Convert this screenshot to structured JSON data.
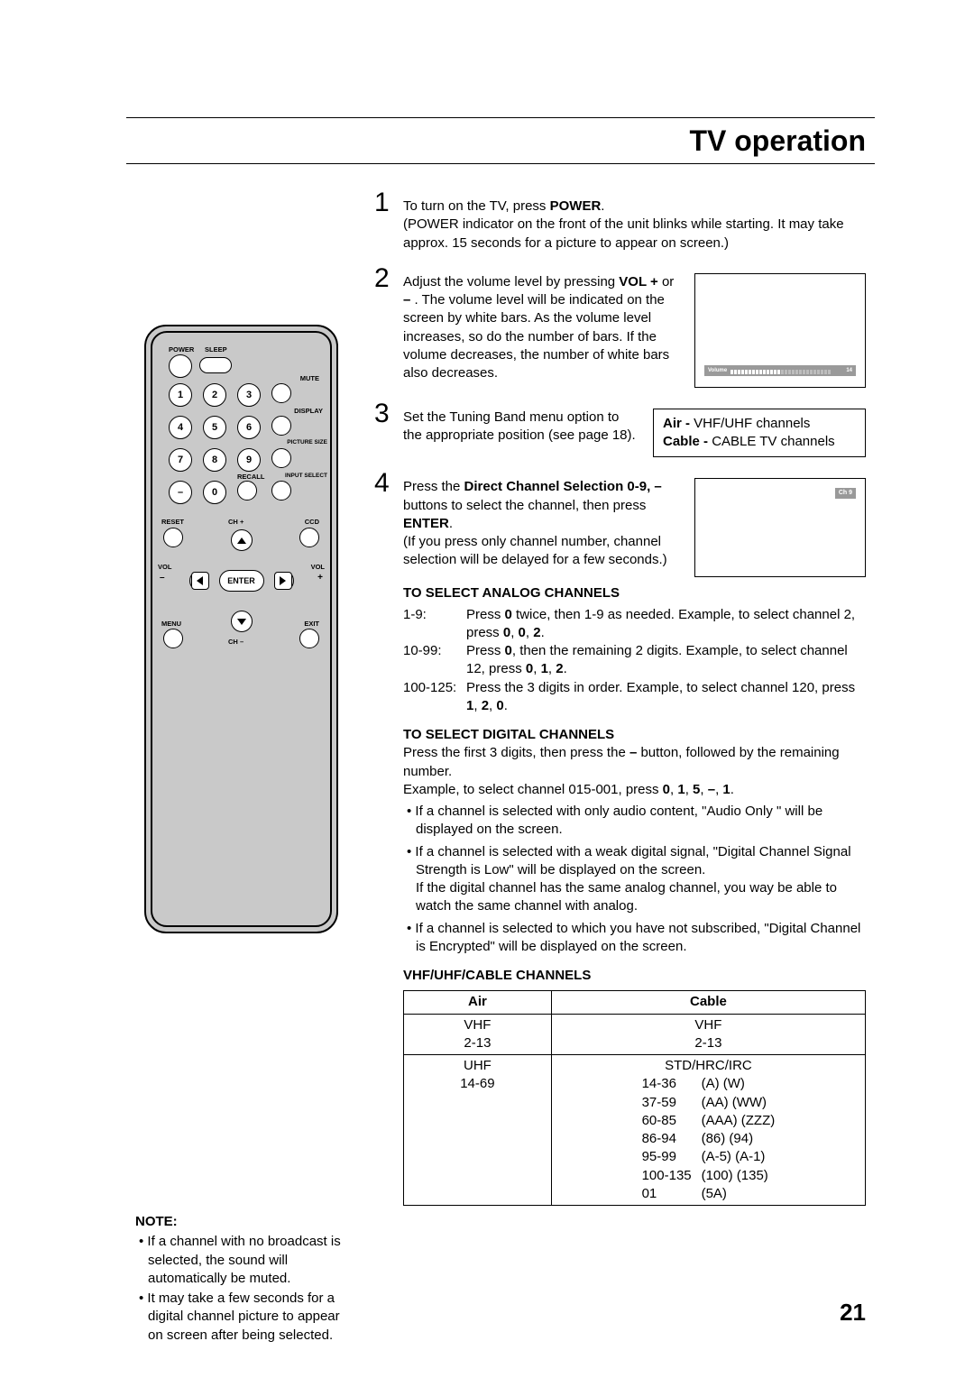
{
  "title": "TV operation",
  "page_number": "21",
  "steps": {
    "s1": {
      "num": "1",
      "a": "To turn on the TV, press ",
      "b": "POWER",
      "c": ".",
      "d": "(POWER indicator on the front of the unit blinks while starting. It may take approx. 15 seconds for a picture to appear on screen.)"
    },
    "s2": {
      "num": "2",
      "a": "Adjust the volume level by pressing ",
      "b": "VOL +",
      "c": " or ",
      "d": "–",
      "e": " . The volume level will be indicated on the screen by white bars. As the volume level increases, so do the number of bars. If the volume decreases, the number of white bars also decreases.",
      "vol_label": "Volume",
      "vol_value": "14"
    },
    "s3": {
      "num": "3",
      "a": "Set the Tuning Band menu option to the appropriate position (see page 18).",
      "band1a": "Air - ",
      "band1b": "VHF/UHF channels",
      "band2a": "Cable - ",
      "band2b": "CABLE TV channels"
    },
    "s4": {
      "num": "4",
      "a": "Press the ",
      "b": "Direct Channel Selection 0-9, –",
      "c": " buttons to select the channel, then press ",
      "d": "ENTER",
      "e": ".",
      "f": "(If you press only channel number, channel selection will be delayed for a few seconds.)",
      "ch_tag": "Ch  9"
    }
  },
  "analog": {
    "h": "TO SELECT ANALOG CHANNELS",
    "r1l": "1-9:",
    "r1a": "Press ",
    "r1b": "0",
    "r1c": " twice, then 1-9 as needed. Example, to select channel 2, press ",
    "r1d": "0",
    "r1e": ", ",
    "r1f": "0",
    "r1g": ", ",
    "r1h": "2",
    "r1i": ".",
    "r2l": "10-99:",
    "r2a": "Press ",
    "r2b": "0",
    "r2c": ", then the remaining 2 digits. Example, to select channel 12, press ",
    "r2d": "0",
    "r2e": ", ",
    "r2f": "1",
    "r2g": ", ",
    "r2h": "2",
    "r2i": ".",
    "r3l": "100-125:",
    "r3a": "Press the 3 digits in order. Example, to select channel 120, press ",
    "r3b": "1",
    "r3c": ", ",
    "r3d": "2",
    "r3e": ", ",
    "r3f": "0",
    "r3g": "."
  },
  "digital": {
    "h": "TO SELECT DIGITAL CHANNELS",
    "p1a": "Press the first 3 digits, then press the ",
    "p1b": "–",
    "p1c": " button, followed by the remaining number.",
    "p2a": "Example, to select channel 015-001, press ",
    "p2b": "0",
    "p2c": ", ",
    "p2d": "1",
    "p2e": ", ",
    "p2f": "5",
    "p2g": ", ",
    "p2h": "–",
    "p2i": ", ",
    "p2j": "1",
    "p2k": ".",
    "b1": "If a channel is selected with only audio content, \"Audio Only \" will be displayed on the screen.",
    "b2a": "If a channel is selected with a weak digital signal, \"Digital Channel Signal Strength is Low\"  will be displayed on the screen.",
    "b2b": "If the digital channel has the same analog channel, you way be able to watch the same channel with analog.",
    "b3": "If a channel is selected to which you have not subscribed, \"Digital Channel is Encrypted\" will be displayed on the screen."
  },
  "vhf": {
    "h": "VHF/UHF/CABLE CHANNELS",
    "th1": "Air",
    "th2": "Cable",
    "a1": "VHF",
    "a2": "2-13",
    "a3": "UHF",
    "a4": "14-69",
    "c1": "VHF",
    "c2": "2-13",
    "c3": "STD/HRC/IRC",
    "rows": [
      {
        "c1": "14-36",
        "c2": "(A) (W)"
      },
      {
        "c1": "37-59",
        "c2": "(AA) (WW)"
      },
      {
        "c1": "60-85",
        "c2": "(AAA) (ZZZ)"
      },
      {
        "c1": "86-94",
        "c2": "(86) (94)"
      },
      {
        "c1": "95-99",
        "c2": "(A-5) (A-1)"
      },
      {
        "c1": "100-135",
        "c2": "(100) (135)"
      },
      {
        "c1": "01",
        "c2": "(5A)"
      }
    ]
  },
  "notes": {
    "h": "NOTE:",
    "n1": "If a channel with no broadcast is selected, the sound will automatically be muted.",
    "n2": "It may take a few seconds for a digital channel picture to appear on screen after being selected."
  },
  "remote": {
    "power": "POWER",
    "sleep": "SLEEP",
    "mute": "MUTE",
    "display": "DISPLAY",
    "picsize": "PICTURE SIZE",
    "recall": "RECALL",
    "input": "INPUT SELECT",
    "reset": "RESET",
    "chp": "CH",
    "ccd": "CCD",
    "voln": "VOL",
    "volp": "VOL",
    "menu": "MENU",
    "exit": "EXIT",
    "chm": "CH",
    "enter": "ENTER",
    "n1": "1",
    "n2": "2",
    "n3": "3",
    "n4": "4",
    "n5": "5",
    "n6": "6",
    "n7": "7",
    "n8": "8",
    "n9": "9",
    "n0": "0",
    "dash": "–",
    "plus": "+",
    "minus": "–"
  }
}
